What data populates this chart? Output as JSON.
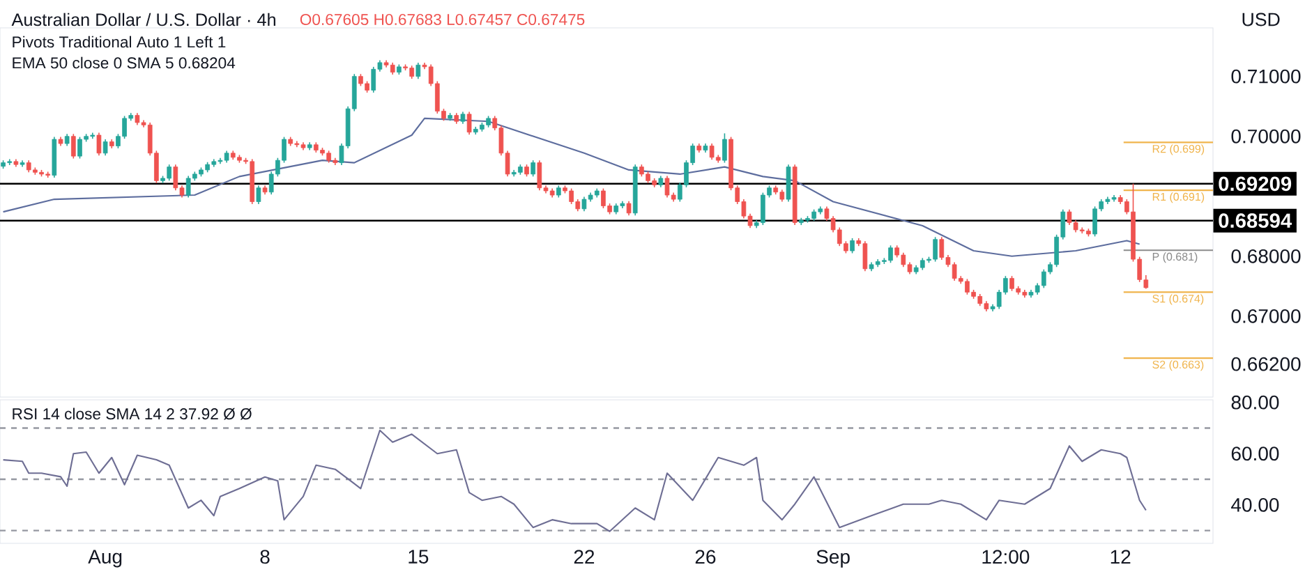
{
  "chart_data": [
    {
      "type": "candlestick",
      "title": "Australian Dollar / U.S. Dollar · 4h",
      "ylabel": "USD",
      "annotations": [
        "O0.67605 H0.67683 L0.67457 C0.67475",
        "Pivots Traditional Auto 1 Left 1",
        "EMA 50 close 0 SMA 5 0.68204"
      ],
      "categories": [
        null,
        null,
        null,
        null,
        null,
        null,
        null,
        null,
        null,
        null,
        null,
        null,
        null,
        null,
        null,
        null,
        null,
        null,
        null,
        null,
        null,
        null,
        null,
        null,
        null,
        null,
        null,
        null,
        null,
        null,
        null,
        null,
        null,
        null,
        null,
        null,
        null,
        null,
        null,
        null,
        null,
        null,
        null,
        null,
        null,
        null,
        null,
        null,
        null,
        null,
        null,
        null,
        null,
        null,
        null,
        null,
        null,
        null,
        null,
        null,
        null,
        null,
        null,
        null,
        null,
        null,
        null,
        null,
        null,
        null,
        null,
        null,
        null,
        null,
        null,
        null,
        null,
        null,
        null,
        null,
        null,
        null,
        null,
        null,
        null,
        null,
        null,
        null,
        null,
        null,
        null,
        null,
        null,
        null,
        null,
        null,
        null,
        null,
        null,
        null,
        null,
        null,
        null,
        null,
        null,
        null,
        null,
        null,
        null,
        null,
        null,
        null,
        null,
        null,
        null,
        null,
        null,
        null,
        null,
        null,
        null,
        null,
        null,
        null,
        null,
        null,
        null,
        null,
        null,
        null,
        null,
        null,
        null,
        null,
        null,
        null,
        null,
        null,
        null,
        null,
        null,
        null,
        null,
        null,
        null,
        null,
        null,
        null,
        null,
        null,
        null,
        null,
        null,
        null,
        null,
        null,
        null,
        null,
        null,
        null,
        null,
        null,
        null,
        null,
        null,
        null,
        null,
        null,
        null,
        null,
        null,
        null,
        null,
        null,
        null,
        null,
        null,
        null,
        null,
        null,
        null,
        null,
        null,
        null,
        null,
        null,
        null,
        null,
        null,
        null
      ],
      "ohlc": [
        [
          0.695,
          0.696,
          0.6946,
          0.6956
        ],
        [
          0.6956,
          0.6962,
          0.6952,
          0.6958
        ],
        [
          0.6958,
          0.6962,
          0.6949,
          0.6953
        ],
        [
          0.6953,
          0.696,
          0.6949,
          0.6956
        ],
        [
          0.6956,
          0.696,
          0.694,
          0.6944
        ],
        [
          0.6944,
          0.6948,
          0.6936,
          0.694
        ],
        [
          0.694,
          0.6944,
          0.6933,
          0.6937
        ],
        [
          0.6937,
          0.6941,
          0.6931,
          0.6935
        ],
        [
          0.6935,
          0.6999,
          0.6931,
          0.6995
        ],
        [
          0.6995,
          0.6999,
          0.6984,
          0.6988
        ],
        [
          0.6988,
          0.7004,
          0.6984,
          0.7
        ],
        [
          0.7,
          0.7004,
          0.6963,
          0.6967
        ],
        [
          0.6967,
          0.6999,
          0.6963,
          0.6995
        ],
        [
          0.6995,
          0.7004,
          0.6991,
          0.7
        ],
        [
          0.7,
          0.7006,
          0.6996,
          0.7002
        ],
        [
          0.7002,
          0.7006,
          0.6968,
          0.6972
        ],
        [
          0.6972,
          0.6995,
          0.6968,
          0.6991
        ],
        [
          0.6991,
          0.6995,
          0.698,
          0.6984
        ],
        [
          0.6984,
          0.7004,
          0.698,
          0.7
        ],
        [
          0.7,
          0.7034,
          0.6996,
          0.703
        ],
        [
          0.703,
          0.7039,
          0.7026,
          0.7035
        ],
        [
          0.7035,
          0.7039,
          0.7019,
          0.7023
        ],
        [
          0.7023,
          0.7027,
          0.7015,
          0.7019
        ],
        [
          0.7019,
          0.7023,
          0.6968,
          0.6972
        ],
        [
          0.6972,
          0.6976,
          0.6922,
          0.6926
        ],
        [
          0.6926,
          0.6934,
          0.6922,
          0.693
        ],
        [
          0.693,
          0.6953,
          0.6926,
          0.6949
        ],
        [
          0.6949,
          0.6953,
          0.691,
          0.6914
        ],
        [
          0.6914,
          0.6918,
          0.6898,
          0.6902
        ],
        [
          0.6902,
          0.6934,
          0.6898,
          0.693
        ],
        [
          0.693,
          0.6941,
          0.6926,
          0.6937
        ],
        [
          0.6937,
          0.6948,
          0.6933,
          0.6944
        ],
        [
          0.6944,
          0.6957,
          0.694,
          0.6953
        ],
        [
          0.6953,
          0.6962,
          0.6949,
          0.6958
        ],
        [
          0.6958,
          0.6964,
          0.6954,
          0.696
        ],
        [
          0.696,
          0.6976,
          0.6956,
          0.6972
        ],
        [
          0.6972,
          0.6976,
          0.6961,
          0.6965
        ],
        [
          0.6965,
          0.6969,
          0.6956,
          0.696
        ],
        [
          0.696,
          0.6964,
          0.6954,
          0.6958
        ],
        [
          0.6958,
          0.6962,
          0.6887,
          0.6891
        ],
        [
          0.6891,
          0.6918,
          0.6887,
          0.6914
        ],
        [
          0.6914,
          0.6918,
          0.6903,
          0.6907
        ],
        [
          0.6907,
          0.6941,
          0.6903,
          0.6937
        ],
        [
          0.6937,
          0.6964,
          0.6933,
          0.696
        ],
        [
          0.696,
          0.6999,
          0.6956,
          0.6995
        ],
        [
          0.6995,
          0.6999,
          0.6984,
          0.6988
        ],
        [
          0.6988,
          0.6992,
          0.6982,
          0.6986
        ],
        [
          0.6986,
          0.699,
          0.6977,
          0.6981
        ],
        [
          0.6981,
          0.699,
          0.6977,
          0.6986
        ],
        [
          0.6986,
          0.699,
          0.6973,
          0.6977
        ],
        [
          0.6977,
          0.6981,
          0.6968,
          0.6972
        ],
        [
          0.6972,
          0.6976,
          0.6956,
          0.696
        ],
        [
          0.696,
          0.6964,
          0.6952,
          0.6956
        ],
        [
          0.6956,
          0.6988,
          0.6952,
          0.6984
        ],
        [
          0.6984,
          0.705,
          0.698,
          0.7046
        ],
        [
          0.7046,
          0.7104,
          0.7042,
          0.71
        ],
        [
          0.71,
          0.7104,
          0.7084,
          0.7088
        ],
        [
          0.7088,
          0.7092,
          0.7073,
          0.7077
        ],
        [
          0.7077,
          0.7116,
          0.7073,
          0.7112
        ],
        [
          0.7112,
          0.7127,
          0.7108,
          0.7123
        ],
        [
          0.7123,
          0.7127,
          0.7115,
          0.7119
        ],
        [
          0.7119,
          0.7123,
          0.7103,
          0.7107
        ],
        [
          0.7107,
          0.712,
          0.7103,
          0.7116
        ],
        [
          0.7116,
          0.712,
          0.711,
          0.7114
        ],
        [
          0.7114,
          0.7118,
          0.7096,
          0.71
        ],
        [
          0.71,
          0.7123,
          0.7096,
          0.7119
        ],
        [
          0.7119,
          0.7123,
          0.7112,
          0.7116
        ],
        [
          0.7116,
          0.712,
          0.7084,
          0.7088
        ],
        [
          0.7088,
          0.7092,
          0.7038,
          0.7042
        ],
        [
          0.7042,
          0.7046,
          0.7026,
          0.703
        ],
        [
          0.703,
          0.7039,
          0.7026,
          0.7035
        ],
        [
          0.7035,
          0.7039,
          0.7021,
          0.7025
        ],
        [
          0.7025,
          0.7041,
          0.7021,
          0.7037
        ],
        [
          0.7037,
          0.7041,
          0.7003,
          0.7007
        ],
        [
          0.7007,
          0.7016,
          0.7003,
          0.7012
        ],
        [
          0.7012,
          0.7023,
          0.7008,
          0.7019
        ],
        [
          0.7019,
          0.7034,
          0.7015,
          0.703
        ],
        [
          0.703,
          0.7034,
          0.701,
          0.7014
        ],
        [
          0.7014,
          0.7018,
          0.6968,
          0.6972
        ],
        [
          0.6972,
          0.6976,
          0.6933,
          0.6937
        ],
        [
          0.6937,
          0.6944,
          0.6933,
          0.694
        ],
        [
          0.694,
          0.6953,
          0.6936,
          0.6949
        ],
        [
          0.6949,
          0.6953,
          0.6933,
          0.6937
        ],
        [
          0.6937,
          0.696,
          0.6933,
          0.6956
        ],
        [
          0.6956,
          0.696,
          0.691,
          0.6914
        ],
        [
          0.6914,
          0.6918,
          0.6905,
          0.6909
        ],
        [
          0.6909,
          0.6913,
          0.6898,
          0.6902
        ],
        [
          0.6902,
          0.6918,
          0.6898,
          0.6914
        ],
        [
          0.6914,
          0.6918,
          0.6905,
          0.6909
        ],
        [
          0.6909,
          0.6913,
          0.6887,
          0.6891
        ],
        [
          0.6891,
          0.6895,
          0.6875,
          0.6879
        ],
        [
          0.6879,
          0.6899,
          0.6875,
          0.6895
        ],
        [
          0.6895,
          0.6906,
          0.6891,
          0.6902
        ],
        [
          0.6902,
          0.6913,
          0.6898,
          0.6909
        ],
        [
          0.6909,
          0.6913,
          0.688,
          0.6884
        ],
        [
          0.6884,
          0.6888,
          0.687,
          0.6874
        ],
        [
          0.6874,
          0.6888,
          0.687,
          0.6884
        ],
        [
          0.6884,
          0.6892,
          0.688,
          0.6888
        ],
        [
          0.6888,
          0.6892,
          0.6868,
          0.6872
        ],
        [
          0.6872,
          0.6953,
          0.6868,
          0.6949
        ],
        [
          0.6949,
          0.6953,
          0.6933,
          0.6937
        ],
        [
          0.6937,
          0.6941,
          0.6922,
          0.6926
        ],
        [
          0.6926,
          0.693,
          0.6915,
          0.6919
        ],
        [
          0.6919,
          0.6934,
          0.6915,
          0.693
        ],
        [
          0.693,
          0.6934,
          0.6898,
          0.6902
        ],
        [
          0.6902,
          0.6906,
          0.6891,
          0.6895
        ],
        [
          0.6895,
          0.6923,
          0.6891,
          0.6919
        ],
        [
          0.6919,
          0.696,
          0.6915,
          0.6956
        ],
        [
          0.6956,
          0.6988,
          0.6952,
          0.6984
        ],
        [
          0.6984,
          0.6988,
          0.6973,
          0.6977
        ],
        [
          0.6977,
          0.6988,
          0.6973,
          0.6984
        ],
        [
          0.6984,
          0.6988,
          0.6961,
          0.6965
        ],
        [
          0.6965,
          0.6969,
          0.6956,
          0.696
        ],
        [
          0.696,
          0.7005,
          0.6956,
          0.6995
        ],
        [
          0.6995,
          0.6999,
          0.691,
          0.6914
        ],
        [
          0.6914,
          0.6918,
          0.6887,
          0.6891
        ],
        [
          0.6891,
          0.6895,
          0.6863,
          0.6867
        ],
        [
          0.6867,
          0.6871,
          0.6847,
          0.6851
        ],
        [
          0.6851,
          0.686,
          0.6847,
          0.6856
        ],
        [
          0.6856,
          0.6906,
          0.6852,
          0.6902
        ],
        [
          0.6902,
          0.6918,
          0.6898,
          0.6914
        ],
        [
          0.6914,
          0.6918,
          0.6903,
          0.6907
        ],
        [
          0.6907,
          0.6911,
          0.6891,
          0.6895
        ],
        [
          0.6895,
          0.6953,
          0.6891,
          0.6949
        ],
        [
          0.6949,
          0.6953,
          0.6852,
          0.6856
        ],
        [
          0.6856,
          0.6864,
          0.6852,
          0.686
        ],
        [
          0.686,
          0.6867,
          0.6856,
          0.6863
        ],
        [
          0.6863,
          0.6878,
          0.6859,
          0.6874
        ],
        [
          0.6874,
          0.6883,
          0.687,
          0.6879
        ],
        [
          0.6879,
          0.6883,
          0.6859,
          0.6863
        ],
        [
          0.6863,
          0.6867,
          0.684,
          0.6844
        ],
        [
          0.6844,
          0.6848,
          0.6817,
          0.6821
        ],
        [
          0.6821,
          0.6825,
          0.6805,
          0.6809
        ],
        [
          0.6809,
          0.683,
          0.6805,
          0.6826
        ],
        [
          0.6826,
          0.683,
          0.6817,
          0.6821
        ],
        [
          0.6821,
          0.6825,
          0.6775,
          0.6779
        ],
        [
          0.6779,
          0.679,
          0.6775,
          0.6786
        ],
        [
          0.6786,
          0.6795,
          0.6782,
          0.6791
        ],
        [
          0.6791,
          0.6797,
          0.6787,
          0.6793
        ],
        [
          0.6793,
          0.6818,
          0.6789,
          0.6814
        ],
        [
          0.6814,
          0.6818,
          0.6798,
          0.6802
        ],
        [
          0.6802,
          0.6806,
          0.6782,
          0.6786
        ],
        [
          0.6786,
          0.679,
          0.677,
          0.6774
        ],
        [
          0.6774,
          0.6785,
          0.677,
          0.6781
        ],
        [
          0.6781,
          0.6797,
          0.6777,
          0.6793
        ],
        [
          0.6793,
          0.6799,
          0.6789,
          0.6795
        ],
        [
          0.6795,
          0.6832,
          0.6791,
          0.6828
        ],
        [
          0.6828,
          0.6832,
          0.6794,
          0.6798
        ],
        [
          0.6798,
          0.6802,
          0.6782,
          0.6786
        ],
        [
          0.6786,
          0.679,
          0.6759,
          0.6763
        ],
        [
          0.6763,
          0.6767,
          0.6754,
          0.6758
        ],
        [
          0.6758,
          0.6762,
          0.6736,
          0.674
        ],
        [
          0.674,
          0.6744,
          0.6729,
          0.6733
        ],
        [
          0.6733,
          0.6737,
          0.6717,
          0.6721
        ],
        [
          0.6721,
          0.6725,
          0.6708,
          0.6712
        ],
        [
          0.6712,
          0.672,
          0.6708,
          0.6716
        ],
        [
          0.6716,
          0.6744,
          0.6712,
          0.674
        ],
        [
          0.674,
          0.6767,
          0.6736,
          0.6763
        ],
        [
          0.6763,
          0.6767,
          0.6742,
          0.6746
        ],
        [
          0.6746,
          0.675,
          0.6736,
          0.674
        ],
        [
          0.674,
          0.6744,
          0.6731,
          0.6735
        ],
        [
          0.6735,
          0.6744,
          0.6731,
          0.674
        ],
        [
          0.674,
          0.6755,
          0.6736,
          0.6751
        ],
        [
          0.6751,
          0.6778,
          0.6747,
          0.6774
        ],
        [
          0.6774,
          0.679,
          0.677,
          0.6786
        ],
        [
          0.6786,
          0.6836,
          0.6782,
          0.6832
        ],
        [
          0.6832,
          0.6878,
          0.6828,
          0.6874
        ],
        [
          0.6874,
          0.6878,
          0.6852,
          0.6856
        ],
        [
          0.6856,
          0.686,
          0.684,
          0.6844
        ],
        [
          0.6844,
          0.6848,
          0.6838,
          0.6842
        ],
        [
          0.6842,
          0.6846,
          0.6833,
          0.6837
        ],
        [
          0.6837,
          0.6883,
          0.6833,
          0.6879
        ],
        [
          0.6879,
          0.6895,
          0.6875,
          0.6891
        ],
        [
          0.6891,
          0.6899,
          0.6887,
          0.6895
        ],
        [
          0.6895,
          0.6902,
          0.6891,
          0.6898
        ],
        [
          0.6898,
          0.6902,
          0.6887,
          0.6891
        ],
        [
          0.6891,
          0.6895,
          0.687,
          0.6874
        ],
        [
          0.6874,
          0.6921,
          0.6791,
          0.6795
        ],
        [
          0.6795,
          0.6799,
          0.6757,
          0.6761
        ],
        [
          0.67605,
          0.67683,
          0.67457,
          0.67475
        ],
        null,
        null,
        null,
        null,
        null,
        null,
        null,
        null,
        null,
        null
      ],
      "series": [
        {
          "type": "line",
          "color": "#5d6d9e",
          "values": [
            0.6874,
            null,
            null,
            null,
            null,
            null,
            null,
            null,
            0.6895,
            null,
            null,
            null,
            null,
            null,
            null,
            null,
            null,
            null,
            null,
            null,
            null,
            null,
            null,
            null,
            null,
            null,
            null,
            null,
            null,
            null,
            0.6902,
            null,
            null,
            null,
            null,
            null,
            null,
            0.6933,
            null,
            null,
            null,
            null,
            null,
            null,
            null,
            null,
            null,
            null,
            null,
            null,
            0.696,
            null,
            null,
            null,
            null,
            0.6956,
            null,
            null,
            null,
            null,
            null,
            null,
            null,
            null,
            0.7002,
            null,
            0.703,
            null,
            null,
            null,
            null,
            null,
            null,
            null,
            null,
            null,
            0.7025,
            null,
            null,
            null,
            null,
            null,
            null,
            null,
            null,
            null,
            null,
            null,
            null,
            null,
            null,
            0.6972,
            null,
            null,
            null,
            null,
            null,
            null,
            0.6944,
            null,
            null,
            null,
            null,
            null,
            null,
            null,
            0.6937,
            null,
            null,
            null,
            null,
            null,
            null,
            0.6949,
            null,
            null,
            null,
            null,
            null,
            0.6933,
            null,
            null,
            null,
            null,
            0.6926,
            null,
            null,
            null,
            null,
            null,
            0.6891,
            null,
            null,
            null,
            null,
            null,
            null,
            null,
            null,
            null,
            null,
            null,
            null,
            null,
            0.6851,
            null,
            null,
            null,
            null,
            null,
            null,
            null,
            0.6809,
            null,
            null,
            null,
            null,
            null,
            0.68,
            null,
            null,
            null,
            null,
            null,
            null,
            null,
            null,
            null,
            0.6809,
            null,
            null,
            null,
            null,
            null,
            null,
            null,
            0.6826,
            null,
            0.682,
            null,
            null,
            null,
            null,
            null,
            null,
            null,
            null,
            null,
            null,
            null
          ]
        }
      ],
      "ylim": [
        0.6565,
        0.7181
      ],
      "yticks": [
        {
          "value": 0.662,
          "label": "0.66200"
        },
        {
          "value": 0.67,
          "label": "0.67000"
        },
        {
          "value": 0.68,
          "label": "0.68000"
        },
        {
          "value": 0.7,
          "label": "0.70000"
        },
        {
          "value": 0.71,
          "label": "0.71000"
        }
      ],
      "tick_labels": "y",
      "ref_lines": [
        {
          "axis": "y",
          "value": 0.69209,
          "label": "0.69209",
          "color": "#000000"
        },
        {
          "axis": "y",
          "value": 0.68594,
          "label": "0.68594",
          "color": "#000000"
        },
        {
          "axis": "y",
          "value": 0.699,
          "label": "R2 (0.699)",
          "color": "#f0b44c"
        },
        {
          "axis": "y",
          "value": 0.691,
          "label": "R1 (0.691)",
          "color": "#f0b44c"
        },
        {
          "axis": "y",
          "value": 0.681,
          "label": "P (0.681)",
          "color": "#8a8a8a"
        },
        {
          "axis": "y",
          "value": 0.674,
          "label": "S1 (0.674)",
          "color": "#f0b44c"
        },
        {
          "axis": "y",
          "value": 0.663,
          "label": "S2 (0.663)",
          "color": "#f0b44c"
        }
      ]
    },
    {
      "type": "line",
      "annotations": [
        "RSI 14 close SMA 14 2 37.92 Ø Ø"
      ],
      "series": [
        {
          "color": "#6e6e94",
          "values": [
            57.6,
            null,
            null,
            57,
            52.4,
            null,
            52.4,
            null,
            null,
            51,
            47.3,
            60,
            null,
            60.6,
            null,
            52.4,
            null,
            58.5,
            null,
            47.9,
            null,
            59.4,
            null,
            null,
            57.6,
            null,
            55.5,
            null,
            null,
            38.8,
            null,
            41.8,
            null,
            35.8,
            43.3,
            null,
            null,
            46.4,
            null,
            null,
            null,
            50.9,
            null,
            49.4,
            34.2,
            null,
            null,
            43.3,
            null,
            55.5,
            null,
            null,
            53.9,
            null,
            null,
            null,
            46.4,
            null,
            null,
            69.1,
            null,
            64.5,
            null,
            null,
            67.6,
            null,
            null,
            null,
            60,
            null,
            null,
            61.5,
            null,
            44.8,
            null,
            41.8,
            null,
            null,
            43.3,
            null,
            40.3,
            null,
            null,
            31.2,
            null,
            null,
            34.2,
            null,
            null,
            32.7,
            null,
            null,
            null,
            32.7,
            null,
            29.7,
            null,
            null,
            null,
            38.8,
            null,
            null,
            34.2,
            null,
            52.4,
            null,
            null,
            null,
            41.8,
            null,
            null,
            null,
            58.5,
            null,
            null,
            null,
            55.5,
            null,
            58.5,
            41.8,
            null,
            null,
            34.2,
            null,
            40.3,
            null,
            null,
            50.9,
            null,
            null,
            null,
            31.2,
            null,
            null,
            null,
            null,
            35.8,
            null,
            null,
            null,
            null,
            40.3,
            null,
            null,
            null,
            40.3,
            null,
            41.8,
            null,
            null,
            40.3,
            null,
            null,
            null,
            34.2,
            null,
            41.8,
            null,
            null,
            null,
            40.3,
            null,
            null,
            null,
            46.4,
            null,
            null,
            63,
            null,
            57,
            null,
            null,
            61.5,
            null,
            null,
            60,
            58.5,
            null,
            41.8,
            37.9,
            null,
            null,
            null,
            null,
            null,
            null,
            null,
            null,
            null,
            null
          ]
        }
      ],
      "categories": [
        null,
        null,
        null,
        null,
        null,
        null,
        null,
        null,
        null,
        null,
        null,
        null,
        null,
        null,
        null,
        null,
        "Aug",
        null,
        null,
        null,
        null,
        null,
        null,
        null,
        null,
        null,
        null,
        null,
        null,
        null,
        null,
        null,
        null,
        null,
        null,
        null,
        null,
        null,
        null,
        null,
        null,
        "8",
        null,
        null,
        null,
        null,
        null,
        null,
        null,
        null,
        null,
        null,
        null,
        null,
        null,
        null,
        null,
        null,
        null,
        null,
        null,
        null,
        null,
        null,
        null,
        "15",
        null,
        null,
        null,
        null,
        null,
        null,
        null,
        null,
        null,
        null,
        null,
        null,
        null,
        null,
        null,
        null,
        null,
        null,
        null,
        null,
        null,
        null,
        null,
        null,
        null,
        "22",
        null,
        null,
        null,
        null,
        null,
        null,
        null,
        null,
        null,
        null,
        null,
        null,
        null,
        null,
        null,
        null,
        null,
        null,
        "26",
        null,
        null,
        null,
        null,
        null,
        null,
        null,
        null,
        null,
        null,
        null,
        null,
        null,
        null,
        null,
        null,
        null,
        null,
        null,
        "Sep",
        null,
        null,
        null,
        null,
        null,
        null,
        null,
        null,
        null,
        null,
        null,
        null,
        null,
        null,
        null,
        null,
        null,
        null,
        null,
        null,
        null,
        null,
        null,
        null,
        null,
        null,
        "12:00",
        null,
        null,
        null,
        null,
        null,
        null,
        null,
        null,
        null,
        null,
        null,
        null,
        null,
        null,
        null,
        null,
        null,
        "12",
        null,
        null,
        null,
        null,
        null,
        null,
        null,
        null,
        null,
        null,
        null,
        null,
        null,
        null
      ],
      "ylim": [
        25,
        81
      ],
      "yticks": [
        {
          "value": 40,
          "label": "40.00"
        },
        {
          "value": 60,
          "label": "60.00"
        },
        {
          "value": 80,
          "label": "80.00"
        }
      ],
      "ref_lines": [
        {
          "axis": "y",
          "value": 70,
          "color": "#9598a1",
          "line_style": "dashed"
        },
        {
          "axis": "y",
          "value": 50,
          "color": "#9598a1",
          "line_style": "dashed"
        },
        {
          "axis": "y",
          "value": 30,
          "color": "#9598a1",
          "line_style": "dashed"
        }
      ]
    }
  ]
}
